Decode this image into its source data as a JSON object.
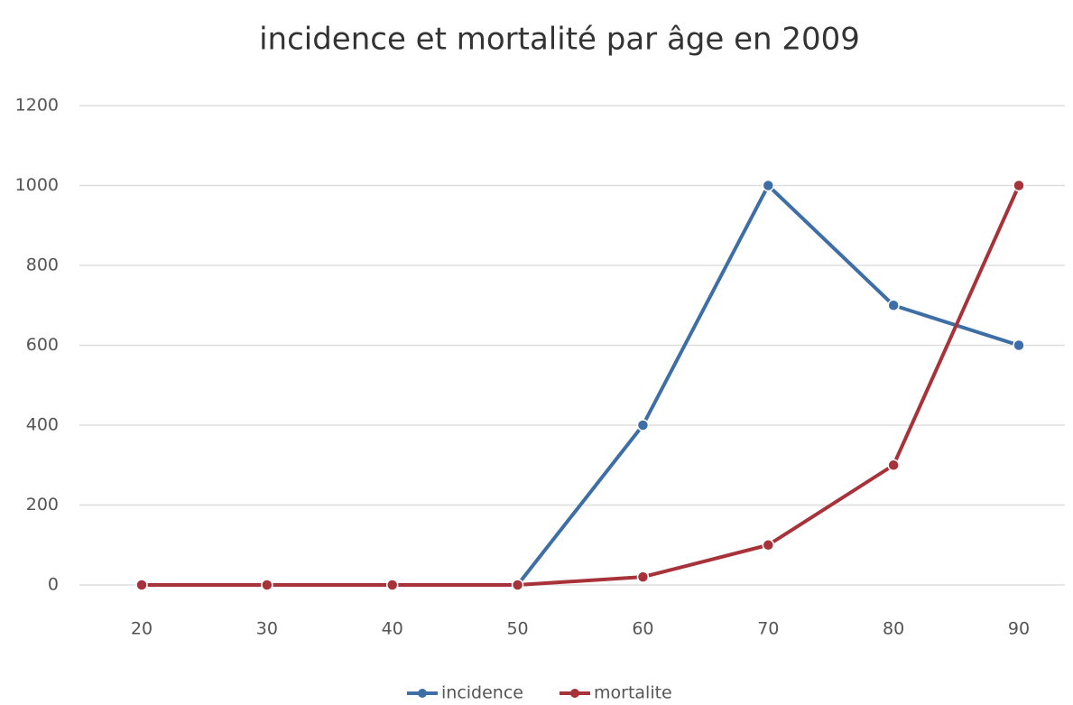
{
  "chart_data": {
    "type": "line",
    "title": "incidence et mortalité par âge en 2009",
    "categories": [
      "20",
      "30",
      "40",
      "50",
      "60",
      "70",
      "80",
      "90"
    ],
    "series": [
      {
        "name": "incidence",
        "color": "#3e6ea6",
        "values": [
          0,
          0,
          0,
          0,
          400,
          1000,
          700,
          600
        ]
      },
      {
        "name": "mortalite",
        "color": "#a8323a",
        "values": [
          0,
          0,
          0,
          0,
          20,
          100,
          300,
          1000
        ]
      }
    ],
    "ylim": [
      0,
      1200
    ],
    "yticks": [
      0,
      200,
      400,
      600,
      800,
      1000,
      1200
    ],
    "grid": true,
    "legend": "bottom"
  }
}
